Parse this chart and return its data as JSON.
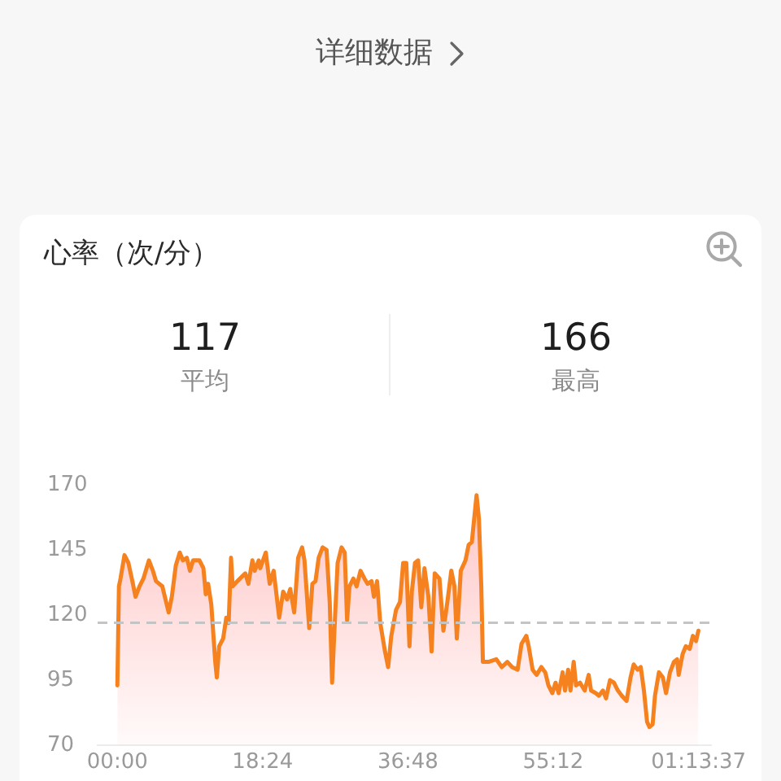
{
  "chart_data": {
    "type": "area",
    "title": "心率（次/分）",
    "annotations": [
      "详细数据",
      "117",
      "平均",
      "166",
      "最高"
    ],
    "x": [
      0,
      0.2,
      0.4,
      0.9,
      1.4,
      1.9,
      2.3,
      2.8,
      3.3,
      4.0,
      4.5,
      4.9,
      5.7,
      6.5,
      6.9,
      7.4,
      7.9,
      8.3,
      8.8,
      9.2,
      9.6,
      10.4,
      10.9,
      11.2,
      11.5,
      11.9,
      12.4,
      12.6,
      12.9,
      13.4,
      13.8,
      14.1,
      14.4,
      14.6,
      15.2,
      16.2,
      16.6,
      17.1,
      17.4,
      17.9,
      18.1,
      18.8,
      19.3,
      19.8,
      20.5,
      21.0,
      21.5,
      21.9,
      22.4,
      22.9,
      23.4,
      23.7,
      24.3,
      24.7,
      25.1,
      25.5,
      26.0,
      26.5,
      26.9,
      27.2,
      27.6,
      27.9,
      28.4,
      28.8,
      29.1,
      29.4,
      29.9,
      30.3,
      30.8,
      31.3,
      31.7,
      32.2,
      32.5,
      32.9,
      33.3,
      33.9,
      34.3,
      34.7,
      35.3,
      35.8,
      36.2,
      36.6,
      37.0,
      37.3,
      37.7,
      38.1,
      38.5,
      38.9,
      39.4,
      39.8,
      40.2,
      40.8,
      41.3,
      41.8,
      42.3,
      42.7,
      43.0,
      43.5,
      44.1,
      44.5,
      44.9,
      45.2,
      45.5,
      45.8,
      46.1,
      46.3,
      47.0,
      48.0,
      48.7,
      49.4,
      50.0,
      50.7,
      51.2,
      51.8,
      52.1,
      52.6,
      53.1,
      53.7,
      54.2,
      54.6,
      55.1,
      55.5,
      55.9,
      56.4,
      56.7,
      57.1,
      57.4,
      57.8,
      58.1,
      58.6,
      59.2,
      59.7,
      60.0,
      60.6,
      61.0,
      61.5,
      61.9,
      62.4,
      62.9,
      63.4,
      63.9,
      64.5,
      65.0,
      65.4,
      65.9,
      66.3,
      66.7,
      67.1,
      67.4,
      67.8,
      68.1,
      68.6,
      69.1,
      69.5,
      70.0,
      70.5,
      70.9,
      71.1,
      71.6,
      72.0,
      72.5,
      72.9,
      73.3,
      73.6
    ],
    "values": [
      93,
      131,
      134,
      143,
      140,
      133,
      127,
      131,
      134,
      141,
      137,
      133,
      131,
      121,
      127,
      139,
      144,
      141,
      142,
      137,
      141,
      141,
      138,
      128,
      132,
      124,
      102,
      96,
      108,
      111,
      119,
      117,
      142,
      131,
      133,
      136,
      132,
      141,
      137,
      141,
      138,
      144,
      132,
      137,
      119,
      129,
      126,
      130,
      121,
      142,
      146,
      141,
      115,
      132,
      133,
      142,
      146,
      145,
      125,
      94,
      121,
      140,
      146,
      144,
      118,
      131,
      134,
      131,
      137,
      134,
      132,
      133,
      127,
      133,
      117,
      106,
      100,
      112,
      122,
      125,
      140,
      140,
      108,
      129,
      140,
      141,
      123,
      138,
      127,
      106,
      136,
      134,
      114,
      125,
      137,
      131,
      111,
      137,
      141,
      147,
      148,
      157,
      166,
      157,
      131,
      102,
      102,
      103,
      100,
      102,
      100,
      99,
      109,
      112,
      108,
      99,
      97,
      100,
      98,
      93,
      90,
      94,
      90,
      98,
      91,
      99,
      91,
      102,
      93,
      94,
      91,
      97,
      91,
      90,
      89,
      91,
      88,
      95,
      94,
      91,
      89,
      87,
      96,
      101,
      99,
      100,
      91,
      79,
      77,
      78,
      89,
      98,
      96,
      90,
      98,
      102,
      103,
      97,
      105,
      108,
      107,
      112,
      110,
      114
    ],
    "color": "#f5821f",
    "xlim": [
      -2.5,
      75.2
    ],
    "xticks": [
      {
        "value": 0,
        "label": "00:00"
      },
      {
        "value": 18.4,
        "label": "18:24"
      },
      {
        "value": 36.8,
        "label": "36:48"
      },
      {
        "value": 55.2,
        "label": "55:12"
      },
      {
        "value": 73.617,
        "label": "01:13:37"
      }
    ],
    "ylim": [
      70,
      170
    ],
    "yticks": [
      70,
      95,
      120,
      145,
      170
    ],
    "ref_lines": [
      {
        "axis": "y",
        "value": 117,
        "color": "#c4c4c4",
        "line_style": "dashed"
      }
    ]
  }
}
